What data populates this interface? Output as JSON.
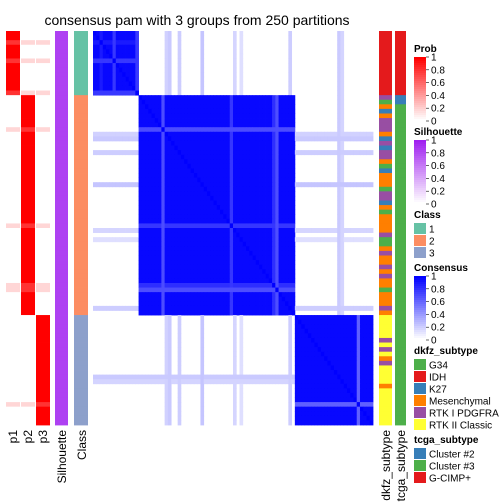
{
  "chart_data": {
    "type": "heatmap",
    "title": "consensus pam with 3 groups from 250 partitions",
    "group_sizes": [
      14,
      48,
      24
    ],
    "left_annotations": {
      "columns": [
        "p1",
        "p2",
        "p3",
        "Silhouette",
        "Class"
      ],
      "prob_by_group": [
        {
          "group": 1,
          "p1": 1.0,
          "p2": 0.0,
          "p3": 0.0
        },
        {
          "group": 2,
          "p1": 0.0,
          "p2": 1.0,
          "p3": 0.0
        },
        {
          "group": 3,
          "p1": 0.0,
          "p2": 0.0,
          "p3": 1.0
        }
      ],
      "silhouette_typical": 0.85
    },
    "right_annotations": {
      "columns": [
        "dkfz_subtype",
        "tcga_subtype"
      ]
    },
    "legends": [
      {
        "title": "Prob",
        "kind": "gradient",
        "colors": [
          "#ffffff",
          "#ff0000"
        ],
        "ticks": [
          "1",
          "0.8",
          "0.6",
          "0.4",
          "0.2",
          "0"
        ]
      },
      {
        "title": "Silhouette",
        "kind": "gradient",
        "colors": [
          "#ffffff",
          "#a020f0"
        ],
        "ticks": [
          "1",
          "0.8",
          "0.6",
          "0.4",
          "0.2",
          "0"
        ]
      },
      {
        "title": "Class",
        "kind": "discrete",
        "items": [
          {
            "label": "1",
            "color": "#66c2a5"
          },
          {
            "label": "2",
            "color": "#fc8d62"
          },
          {
            "label": "3",
            "color": "#8da0cb"
          }
        ]
      },
      {
        "title": "Consensus",
        "kind": "gradient",
        "colors": [
          "#ffffff",
          "#0000ff"
        ],
        "ticks": [
          "1",
          "0.8",
          "0.6",
          "0.4",
          "0.2",
          "0"
        ]
      },
      {
        "title": "dkfz_subtype",
        "kind": "discrete",
        "items": [
          {
            "label": "G34",
            "color": "#4daf4a"
          },
          {
            "label": "IDH",
            "color": "#e41a1c"
          },
          {
            "label": "K27",
            "color": "#377eb8"
          },
          {
            "label": "Mesenchymal",
            "color": "#ff7f00"
          },
          {
            "label": "RTK I PDGFRA",
            "color": "#984ea3"
          },
          {
            "label": "RTK II Classic",
            "color": "#ffff33"
          }
        ]
      },
      {
        "title": "tcga_subtype",
        "kind": "discrete",
        "items": [
          {
            "label": "Cluster #2",
            "color": "#377eb8"
          },
          {
            "label": "Cluster #3",
            "color": "#4daf4a"
          },
          {
            "label": "G-CIMP+",
            "color": "#e41a1c"
          }
        ]
      }
    ]
  }
}
